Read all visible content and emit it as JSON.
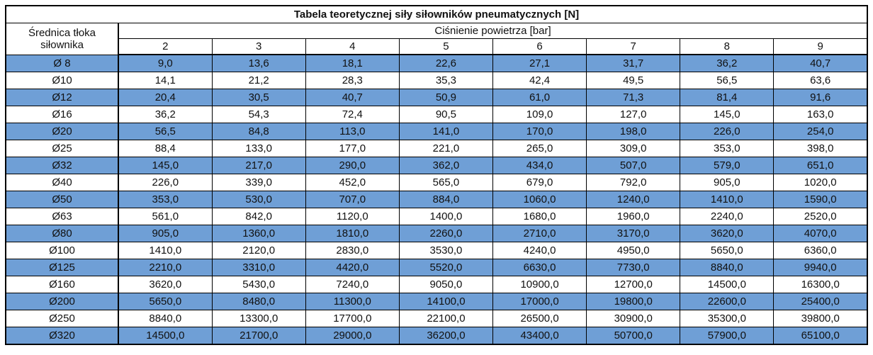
{
  "title": "Tabela teoretycznej siły siłowników pneumatycznych [N]",
  "header": {
    "diameter_label": "Średnica tłoka siłownika",
    "pressure_label": "Ciśnienie powietrza [bar]",
    "pressure_columns": [
      "2",
      "3",
      "4",
      "5",
      "6",
      "7",
      "8",
      "9"
    ]
  },
  "colors": {
    "row_highlight": "#6f9fd6",
    "row_plain": "#ffffff",
    "border": "#000000",
    "text": "#111111"
  },
  "chart_data": {
    "type": "table",
    "title": "Tabela teoretycznej siły siłowników pneumatycznych [N]",
    "x_header": "Ciśnienie powietrza [bar]",
    "row_header": "Średnica tłoka siłownika",
    "categories": [
      "2",
      "3",
      "4",
      "5",
      "6",
      "7",
      "8",
      "9"
    ],
    "rows": [
      {
        "diameter": "Ø 8",
        "values": [
          "9,0",
          "13,6",
          "18,1",
          "22,6",
          "27,1",
          "31,7",
          "36,2",
          "40,7"
        ]
      },
      {
        "diameter": "Ø10",
        "values": [
          "14,1",
          "21,2",
          "28,3",
          "35,3",
          "42,4",
          "49,5",
          "56,5",
          "63,6"
        ]
      },
      {
        "diameter": "Ø12",
        "values": [
          "20,4",
          "30,5",
          "40,7",
          "50,9",
          "61,0",
          "71,3",
          "81,4",
          "91,6"
        ]
      },
      {
        "diameter": "Ø16",
        "values": [
          "36,2",
          "54,3",
          "72,4",
          "90,5",
          "109,0",
          "127,0",
          "145,0",
          "163,0"
        ]
      },
      {
        "diameter": "Ø20",
        "values": [
          "56,5",
          "84,8",
          "113,0",
          "141,0",
          "170,0",
          "198,0",
          "226,0",
          "254,0"
        ]
      },
      {
        "diameter": "Ø25",
        "values": [
          "88,4",
          "133,0",
          "177,0",
          "221,0",
          "265,0",
          "309,0",
          "353,0",
          "398,0"
        ]
      },
      {
        "diameter": "Ø32",
        "values": [
          "145,0",
          "217,0",
          "290,0",
          "362,0",
          "434,0",
          "507,0",
          "579,0",
          "651,0"
        ]
      },
      {
        "diameter": "Ø40",
        "values": [
          "226,0",
          "339,0",
          "452,0",
          "565,0",
          "679,0",
          "792,0",
          "905,0",
          "1020,0"
        ]
      },
      {
        "diameter": "Ø50",
        "values": [
          "353,0",
          "530,0",
          "707,0",
          "884,0",
          "1060,0",
          "1240,0",
          "1410,0",
          "1590,0"
        ]
      },
      {
        "diameter": "Ø63",
        "values": [
          "561,0",
          "842,0",
          "1120,0",
          "1400,0",
          "1680,0",
          "1960,0",
          "2240,0",
          "2520,0"
        ]
      },
      {
        "diameter": "Ø80",
        "values": [
          "905,0",
          "1360,0",
          "1810,0",
          "2260,0",
          "2710,0",
          "3170,0",
          "3620,0",
          "4070,0"
        ]
      },
      {
        "diameter": "Ø100",
        "values": [
          "1410,0",
          "2120,0",
          "2830,0",
          "3530,0",
          "4240,0",
          "4950,0",
          "5650,0",
          "6360,0"
        ]
      },
      {
        "diameter": "Ø125",
        "values": [
          "2210,0",
          "3310,0",
          "4420,0",
          "5520,0",
          "6630,0",
          "7730,0",
          "8840,0",
          "9940,0"
        ]
      },
      {
        "diameter": "Ø160",
        "values": [
          "3620,0",
          "5430,0",
          "7240,0",
          "9050,0",
          "10900,0",
          "12700,0",
          "14500,0",
          "16300,0"
        ]
      },
      {
        "diameter": "Ø200",
        "values": [
          "5650,0",
          "8480,0",
          "11300,0",
          "14100,0",
          "17000,0",
          "19800,0",
          "22600,0",
          "25400,0"
        ]
      },
      {
        "diameter": "Ø250",
        "values": [
          "8840,0",
          "13300,0",
          "17700,0",
          "22100,0",
          "26500,0",
          "30900,0",
          "35300,0",
          "39800,0"
        ]
      },
      {
        "diameter": "Ø320",
        "values": [
          "14500,0",
          "21700,0",
          "29000,0",
          "36200,0",
          "43400,0",
          "50700,0",
          "57900,0",
          "65100,0"
        ]
      }
    ]
  }
}
